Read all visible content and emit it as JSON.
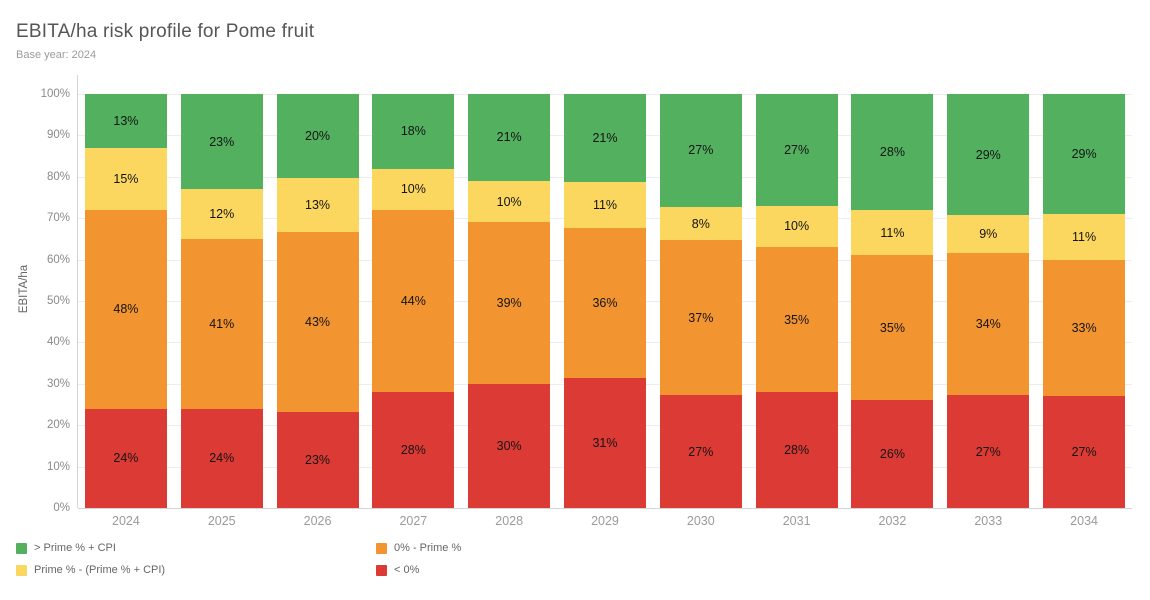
{
  "header": {
    "title": "EBITA/ha risk profile for Pome fruit",
    "subtitle": "Base year: 2024"
  },
  "chart_data": {
    "type": "bar",
    "stacked": true,
    "title": "EBITA/ha risk profile for Pome fruit",
    "subtitle": "Base year: 2024",
    "xlabel": "",
    "ylabel": "EBITA/ha",
    "ylim": [
      0,
      100
    ],
    "grid": true,
    "legend_position": "bottom",
    "y_tick_labels": [
      "0%",
      "10%",
      "20%",
      "30%",
      "40%",
      "50%",
      "60%",
      "70%",
      "80%",
      "90%",
      "100%"
    ],
    "categories": [
      "2024",
      "2025",
      "2026",
      "2027",
      "2028",
      "2029",
      "2030",
      "2031",
      "2032",
      "2033",
      "2034"
    ],
    "series": [
      {
        "name": "> Prime % + CPI",
        "color": "#52B05F",
        "values": [
          13,
          23,
          20,
          18,
          21,
          21,
          27,
          27,
          28,
          29,
          29
        ]
      },
      {
        "name": "Prime % - (Prime % + CPI)",
        "color": "#FCD75F",
        "values": [
          15,
          12,
          13,
          10,
          10,
          11,
          8,
          10,
          11,
          9,
          11
        ]
      },
      {
        "name": "0% - Prime %",
        "color": "#F2942F",
        "values": [
          48,
          41,
          43,
          44,
          39,
          36,
          37,
          35,
          35,
          34,
          33
        ]
      },
      {
        "name": "< 0%",
        "color": "#DC3A34",
        "values": [
          24,
          24,
          23,
          28,
          30,
          31,
          27,
          28,
          26,
          27,
          27
        ]
      }
    ],
    "value_suffix": "%"
  },
  "colors": {
    "title": "#565656",
    "subtitle": "#9b9b9b",
    "axis_label": "#8a8a8a",
    "axis_line": "#d4d4d4",
    "gridline": "#ededed",
    "legend_text": "#666666",
    "value_label": "#141414"
  }
}
